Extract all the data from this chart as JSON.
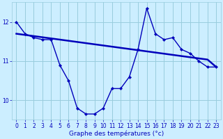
{
  "title": "Graphe des températures (°c)",
  "bg_color": "#cceeff",
  "grid_color": "#99ccdd",
  "line_color": "#0000bb",
  "xlim": [
    -0.5,
    23.5
  ],
  "ylim": [
    9.5,
    12.5
  ],
  "yticks": [
    10,
    11,
    12
  ],
  "xticks": [
    0,
    1,
    2,
    3,
    4,
    5,
    6,
    7,
    8,
    9,
    10,
    11,
    12,
    13,
    14,
    15,
    16,
    17,
    18,
    19,
    20,
    21,
    22,
    23
  ],
  "series1": [
    12.0,
    11.7,
    11.6,
    11.55,
    11.55,
    10.9,
    10.5,
    9.8,
    9.65,
    9.65,
    9.8,
    10.3,
    10.3,
    10.6,
    11.3,
    12.35,
    11.7,
    11.55,
    11.6,
    11.3,
    11.2,
    11.0,
    10.85,
    10.85
  ],
  "series2": [
    11.7,
    11.67,
    11.64,
    11.61,
    11.58,
    11.55,
    11.52,
    11.49,
    11.46,
    11.43,
    11.4,
    11.37,
    11.34,
    11.31,
    11.28,
    11.25,
    11.22,
    11.19,
    11.16,
    11.13,
    11.1,
    11.07,
    11.04,
    10.85
  ],
  "tick_fontsize": 5.5,
  "xlabel_fontsize": 6.5
}
